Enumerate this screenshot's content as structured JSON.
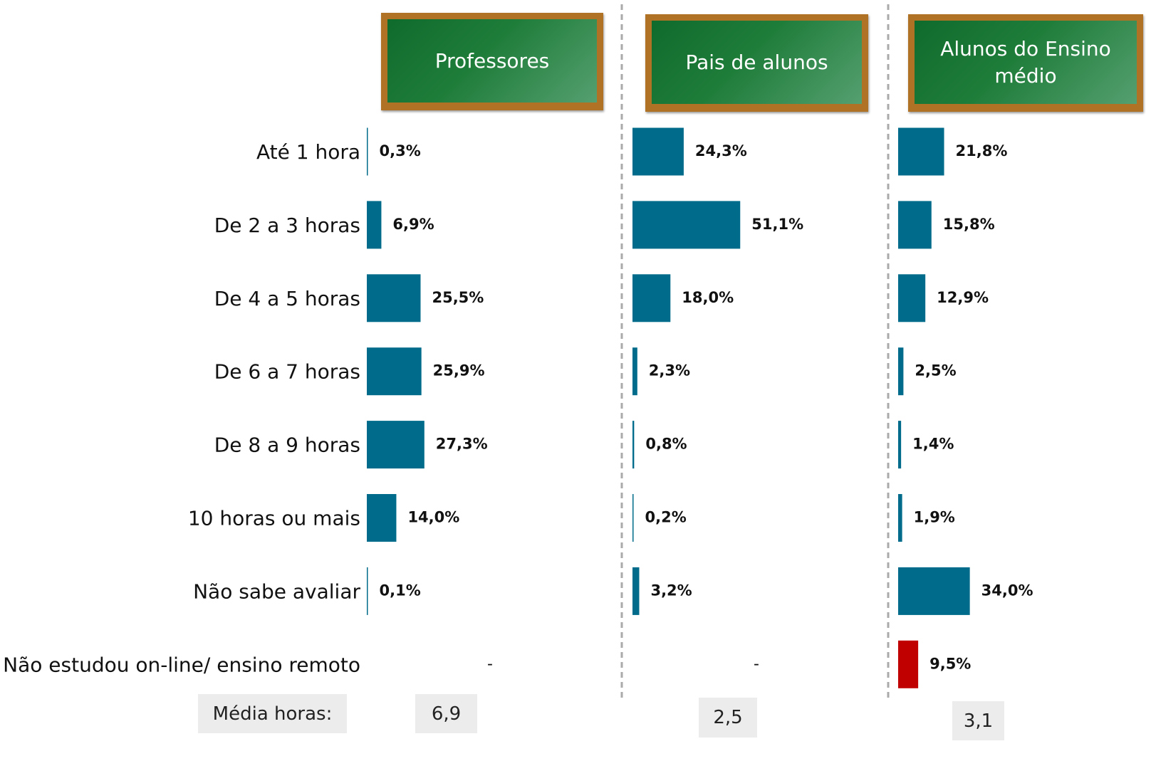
{
  "chart_data": {
    "type": "bar",
    "categories": [
      "Até 1 hora",
      "De 2 a 3 horas",
      "De 4 a 5 horas",
      "De 6 a 7 horas",
      "De 8 a 9 horas",
      "10 horas ou mais",
      "Não sabe avaliar",
      "Não estudou on-line/ ensino remoto"
    ],
    "mean_title": "Média horas:",
    "series": [
      {
        "name": "Professores",
        "color": "#006b8a",
        "values": [
          0.3,
          6.9,
          25.5,
          25.9,
          27.3,
          14.0,
          0.1,
          null
        ],
        "value_labels": [
          "0,3%",
          "6,9%",
          "25,5%",
          "25,9%",
          "27,3%",
          "14,0%",
          "0,1%",
          "-"
        ],
        "mean": "6,9"
      },
      {
        "name": "Pais de alunos",
        "color": "#006b8a",
        "values": [
          24.3,
          51.1,
          18.0,
          2.3,
          0.8,
          0.2,
          3.2,
          null
        ],
        "value_labels": [
          "24,3%",
          "51,1%",
          "18,0%",
          "2,3%",
          "0,8%",
          "0,2%",
          "3,2%",
          "-"
        ],
        "mean": "2,5"
      },
      {
        "name": "Alunos do Ensino médio",
        "color": "#006b8a",
        "colors": [
          "#006b8a",
          "#006b8a",
          "#006b8a",
          "#006b8a",
          "#006b8a",
          "#006b8a",
          "#006b8a",
          "#c00000"
        ],
        "values": [
          21.8,
          15.8,
          12.9,
          2.5,
          1.4,
          1.9,
          34.0,
          9.5
        ],
        "value_labels": [
          "21,8%",
          "15,8%",
          "12,9%",
          "2,5%",
          "1,4%",
          "1,9%",
          "34,0%",
          "9,5%"
        ],
        "mean": "3,1"
      }
    ]
  }
}
